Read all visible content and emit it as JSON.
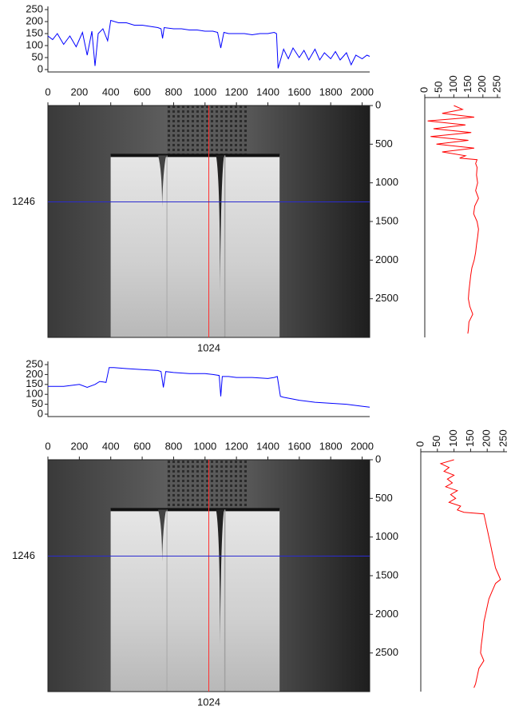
{
  "chart_data": [
    {
      "type": "line",
      "color": "#0000ff",
      "x": [
        0,
        30,
        60,
        100,
        140,
        180,
        220,
        250,
        280,
        300,
        320,
        350,
        380,
        400,
        450,
        500,
        550,
        600,
        650,
        700,
        720,
        730,
        740,
        800,
        850,
        900,
        950,
        1000,
        1050,
        1080,
        1100,
        1120,
        1150,
        1200,
        1250,
        1300,
        1350,
        1400,
        1440,
        1455,
        1465,
        1500,
        1530,
        1560,
        1600,
        1630,
        1660,
        1700,
        1730,
        1760,
        1800,
        1830,
        1860,
        1900,
        1930,
        1960,
        2000,
        2030,
        2048
      ],
      "values": [
        140,
        125,
        150,
        105,
        140,
        95,
        155,
        60,
        160,
        15,
        150,
        170,
        120,
        205,
        195,
        195,
        185,
        185,
        180,
        175,
        170,
        130,
        175,
        170,
        170,
        165,
        165,
        160,
        160,
        155,
        90,
        155,
        150,
        150,
        150,
        145,
        150,
        150,
        155,
        150,
        5,
        85,
        45,
        90,
        50,
        80,
        40,
        85,
        40,
        70,
        45,
        75,
        40,
        70,
        20,
        60,
        45,
        60,
        55
      ],
      "xlim": [
        0,
        2048
      ],
      "ylim": [
        0,
        250
      ],
      "yticks": [
        0,
        50,
        100,
        150,
        200,
        250
      ]
    },
    {
      "type": "image",
      "row": 1246,
      "column": 1024,
      "row_color": "#2b2bd0",
      "column_color": "#ff3030",
      "xlim": [
        0,
        2048
      ],
      "xticks": [
        0,
        200,
        400,
        600,
        800,
        1000,
        1200,
        1400,
        1600,
        1800,
        2000
      ],
      "ylim": [
        0,
        3000
      ],
      "yticks": [
        0,
        500,
        1000,
        1500,
        2000,
        2500
      ]
    },
    {
      "type": "line",
      "orientation": "vertical",
      "color": "#ff0000",
      "x": [
        0,
        50,
        100,
        150,
        200,
        250,
        300,
        350,
        400,
        450,
        500,
        550,
        600,
        650,
        680,
        700,
        750,
        800,
        900,
        1000,
        1100,
        1200,
        1300,
        1400,
        1500,
        1600,
        1700,
        1800,
        1900,
        2000,
        2100,
        2200,
        2300,
        2400,
        2500,
        2600,
        2700,
        2800,
        2900,
        2950
      ],
      "values": [
        100,
        130,
        60,
        170,
        10,
        140,
        30,
        160,
        20,
        150,
        40,
        170,
        60,
        140,
        120,
        180,
        175,
        180,
        178,
        182,
        175,
        185,
        172,
        168,
        180,
        185,
        182,
        178,
        175,
        170,
        162,
        158,
        155,
        152,
        150,
        155,
        165,
        152,
        150,
        148
      ],
      "xlim": [
        0,
        3000
      ],
      "ylim": [
        0,
        250
      ],
      "yticks": [
        0,
        50,
        100,
        150,
        200,
        250
      ]
    },
    {
      "type": "line",
      "color": "#0000ff",
      "x": [
        0,
        100,
        200,
        250,
        300,
        330,
        370,
        390,
        420,
        500,
        600,
        700,
        720,
        735,
        750,
        800,
        900,
        1000,
        1050,
        1090,
        1100,
        1110,
        1150,
        1200,
        1300,
        1400,
        1440,
        1460,
        1480,
        1500,
        1600,
        1700,
        1800,
        1900,
        2000,
        2048
      ],
      "values": [
        140,
        140,
        150,
        135,
        150,
        165,
        160,
        235,
        235,
        230,
        225,
        220,
        215,
        135,
        215,
        210,
        205,
        205,
        200,
        195,
        90,
        190,
        190,
        185,
        185,
        180,
        185,
        190,
        90,
        85,
        70,
        60,
        55,
        50,
        40,
        35
      ],
      "xlim": [
        0,
        2048
      ],
      "ylim": [
        0,
        250
      ],
      "yticks": [
        0,
        50,
        100,
        150,
        200,
        250
      ]
    },
    {
      "type": "image",
      "row": 1246,
      "column": 1024,
      "row_color": "#2b2bd0",
      "column_color": "#ff3030",
      "xlim": [
        0,
        2048
      ],
      "xticks": [
        0,
        200,
        400,
        600,
        800,
        1000,
        1200,
        1400,
        1600,
        1800,
        2000
      ],
      "ylim": [
        0,
        3000
      ],
      "yticks": [
        0,
        500,
        1000,
        1500,
        2000,
        2500
      ]
    },
    {
      "type": "line",
      "orientation": "vertical",
      "color": "#ff0000",
      "x": [
        0,
        50,
        100,
        150,
        200,
        250,
        300,
        350,
        400,
        450,
        500,
        550,
        600,
        650,
        680,
        700,
        800,
        900,
        1000,
        1100,
        1200,
        1300,
        1400,
        1500,
        1550,
        1600,
        1700,
        1800,
        1900,
        2000,
        2100,
        2200,
        2300,
        2400,
        2500,
        2600,
        2700,
        2800,
        2900,
        2950
      ],
      "values": [
        100,
        60,
        85,
        70,
        100,
        80,
        95,
        75,
        110,
        90,
        105,
        85,
        120,
        110,
        130,
        190,
        195,
        200,
        205,
        210,
        215,
        220,
        225,
        235,
        240,
        225,
        215,
        205,
        200,
        195,
        190,
        188,
        185,
        182,
        180,
        190,
        175,
        170,
        165,
        160
      ],
      "xlim": [
        0,
        3000
      ],
      "ylim": [
        0,
        250
      ],
      "yticks": [
        0,
        50,
        100,
        150,
        200,
        250
      ]
    }
  ]
}
